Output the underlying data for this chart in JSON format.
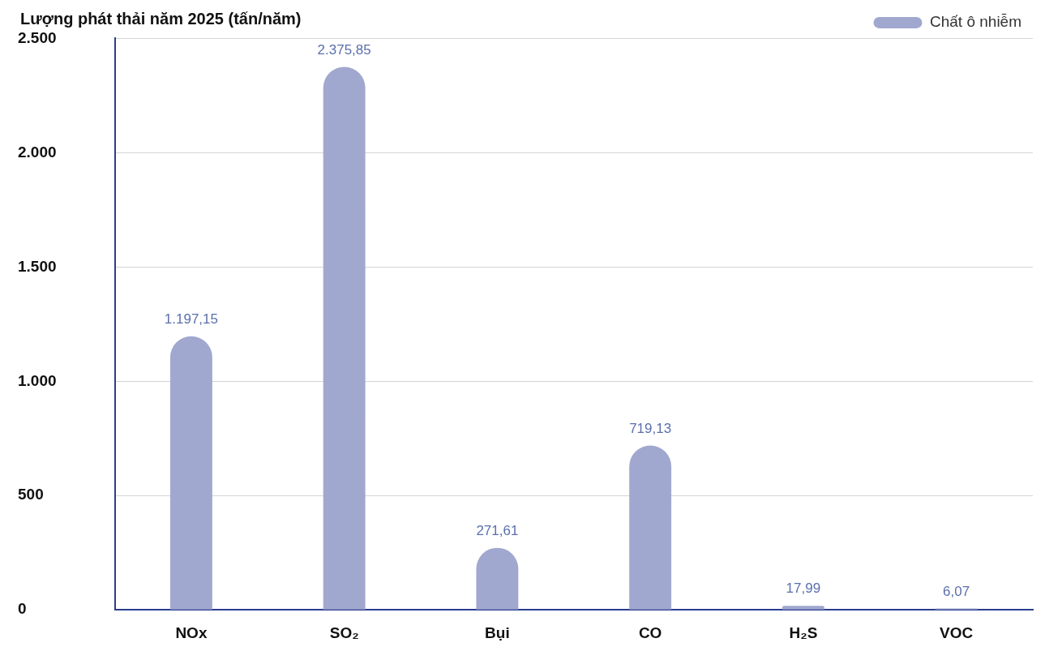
{
  "chart_data": {
    "type": "bar",
    "title": "Lượng phát thải năm 2025 (tấn/năm)",
    "categories": [
      "NOx",
      "SO₂",
      "Bụi",
      "CO",
      "H₂S",
      "VOC"
    ],
    "series": [
      {
        "name": "Chất ô nhiễm",
        "color": "#a1a8cf",
        "values": [
          1197.15,
          2375.85,
          271.61,
          719.13,
          17.99,
          6.07
        ],
        "value_labels": [
          "1.197,15",
          "2.375,85",
          "271,61",
          "719,13",
          "17,99",
          "6,07"
        ]
      }
    ],
    "ylim": [
      0,
      2500
    ],
    "yticks": [
      {
        "value": 0,
        "label": "0"
      },
      {
        "value": 500,
        "label": "500"
      },
      {
        "value": 1000,
        "label": "1.000"
      },
      {
        "value": 1500,
        "label": "1.500"
      },
      {
        "value": 2000,
        "label": "2.000"
      },
      {
        "value": 2500,
        "label": "2.500"
      }
    ],
    "grid": "y",
    "legend": "top right"
  }
}
